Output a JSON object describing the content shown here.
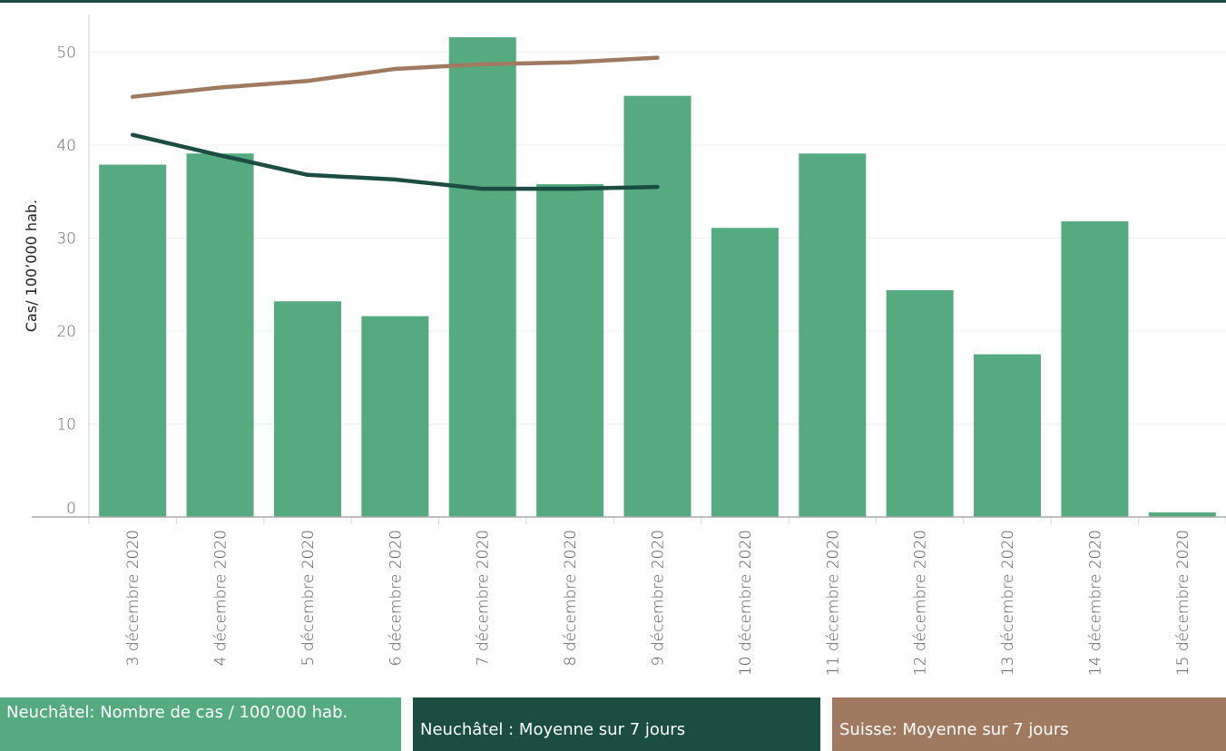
{
  "chart_data": {
    "type": "bar",
    "title": "",
    "xlabel": "",
    "ylabel": "Cas/ 100’000 hab.",
    "ylim": [
      0,
      54
    ],
    "yticks": [
      0,
      10,
      20,
      30,
      40,
      50
    ],
    "grid": true,
    "legend_placement": "bottom",
    "categories": [
      "3 décembre 2020",
      "4 décembre 2020",
      "5 décembre 2020",
      "6 décembre 2020",
      "7 décembre 2020",
      "8 décembre 2020",
      "9 décembre 2020",
      "10 décembre 2020",
      "11 décembre 2020",
      "12 décembre 2020",
      "13 décembre 2020",
      "14 décembre 2020",
      "15 décembre 2020"
    ],
    "series": [
      {
        "name": "Neuchâtel: Nombre de cas / 100’000 hab.",
        "type": "bar",
        "color": "#55aa7f",
        "values": [
          37.9,
          39.1,
          23.2,
          21.6,
          51.6,
          35.8,
          45.3,
          31.1,
          39.1,
          24.4,
          17.5,
          31.8,
          0.5
        ]
      },
      {
        "name": "Neuchâtel : Moyenne sur 7 jours",
        "type": "line",
        "color": "#1b4d43",
        "values": [
          41.1,
          38.9,
          36.8,
          36.3,
          35.3,
          35.3,
          35.5,
          null,
          null,
          null,
          null,
          null,
          null
        ]
      },
      {
        "name": "Suisse: Moyenne sur 7 jours",
        "type": "line",
        "color": "#a07a60",
        "values": [
          45.2,
          46.2,
          46.9,
          48.2,
          48.7,
          48.9,
          49.4,
          null,
          null,
          null,
          null,
          null,
          null
        ]
      }
    ]
  }
}
